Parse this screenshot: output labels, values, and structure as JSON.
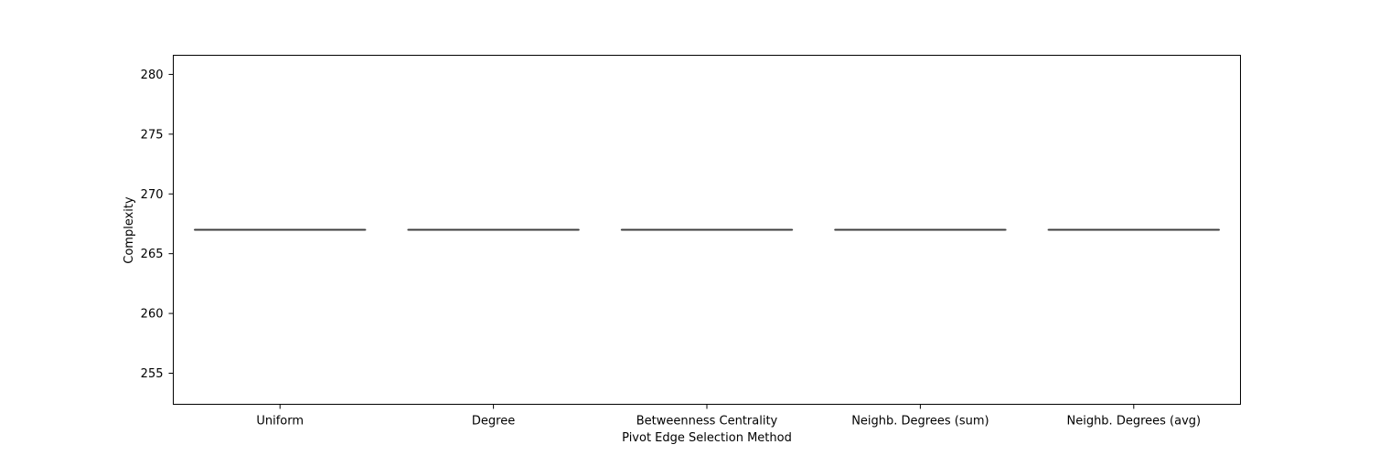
{
  "chart_data": {
    "type": "box",
    "title": "",
    "xlabel": "Pivot Edge Selection Method",
    "ylabel": "Complexity",
    "categories": [
      "Uniform",
      "Degree",
      "Betweenness Centrality",
      "Neighb. Degrees (sum)",
      "Neighb. Degrees (avg)"
    ],
    "series": [
      {
        "values": [
          {
            "min": 267,
            "q1": 267,
            "median": 267,
            "q3": 267,
            "max": 267
          },
          {
            "min": 267,
            "q1": 267,
            "median": 267,
            "q3": 267,
            "max": 267
          },
          {
            "min": 267,
            "q1": 267,
            "median": 267,
            "q3": 267,
            "max": 267
          },
          {
            "min": 267,
            "q1": 267,
            "median": 267,
            "q3": 267,
            "max": 267
          },
          {
            "min": 267,
            "q1": 267,
            "median": 267,
            "q3": 267,
            "max": 267
          }
        ]
      }
    ],
    "ylim": [
      252.4,
      281.6
    ],
    "yticks": [
      255,
      260,
      265,
      270,
      275,
      280
    ],
    "grid": false,
    "box_color": "#3f3f3f"
  }
}
